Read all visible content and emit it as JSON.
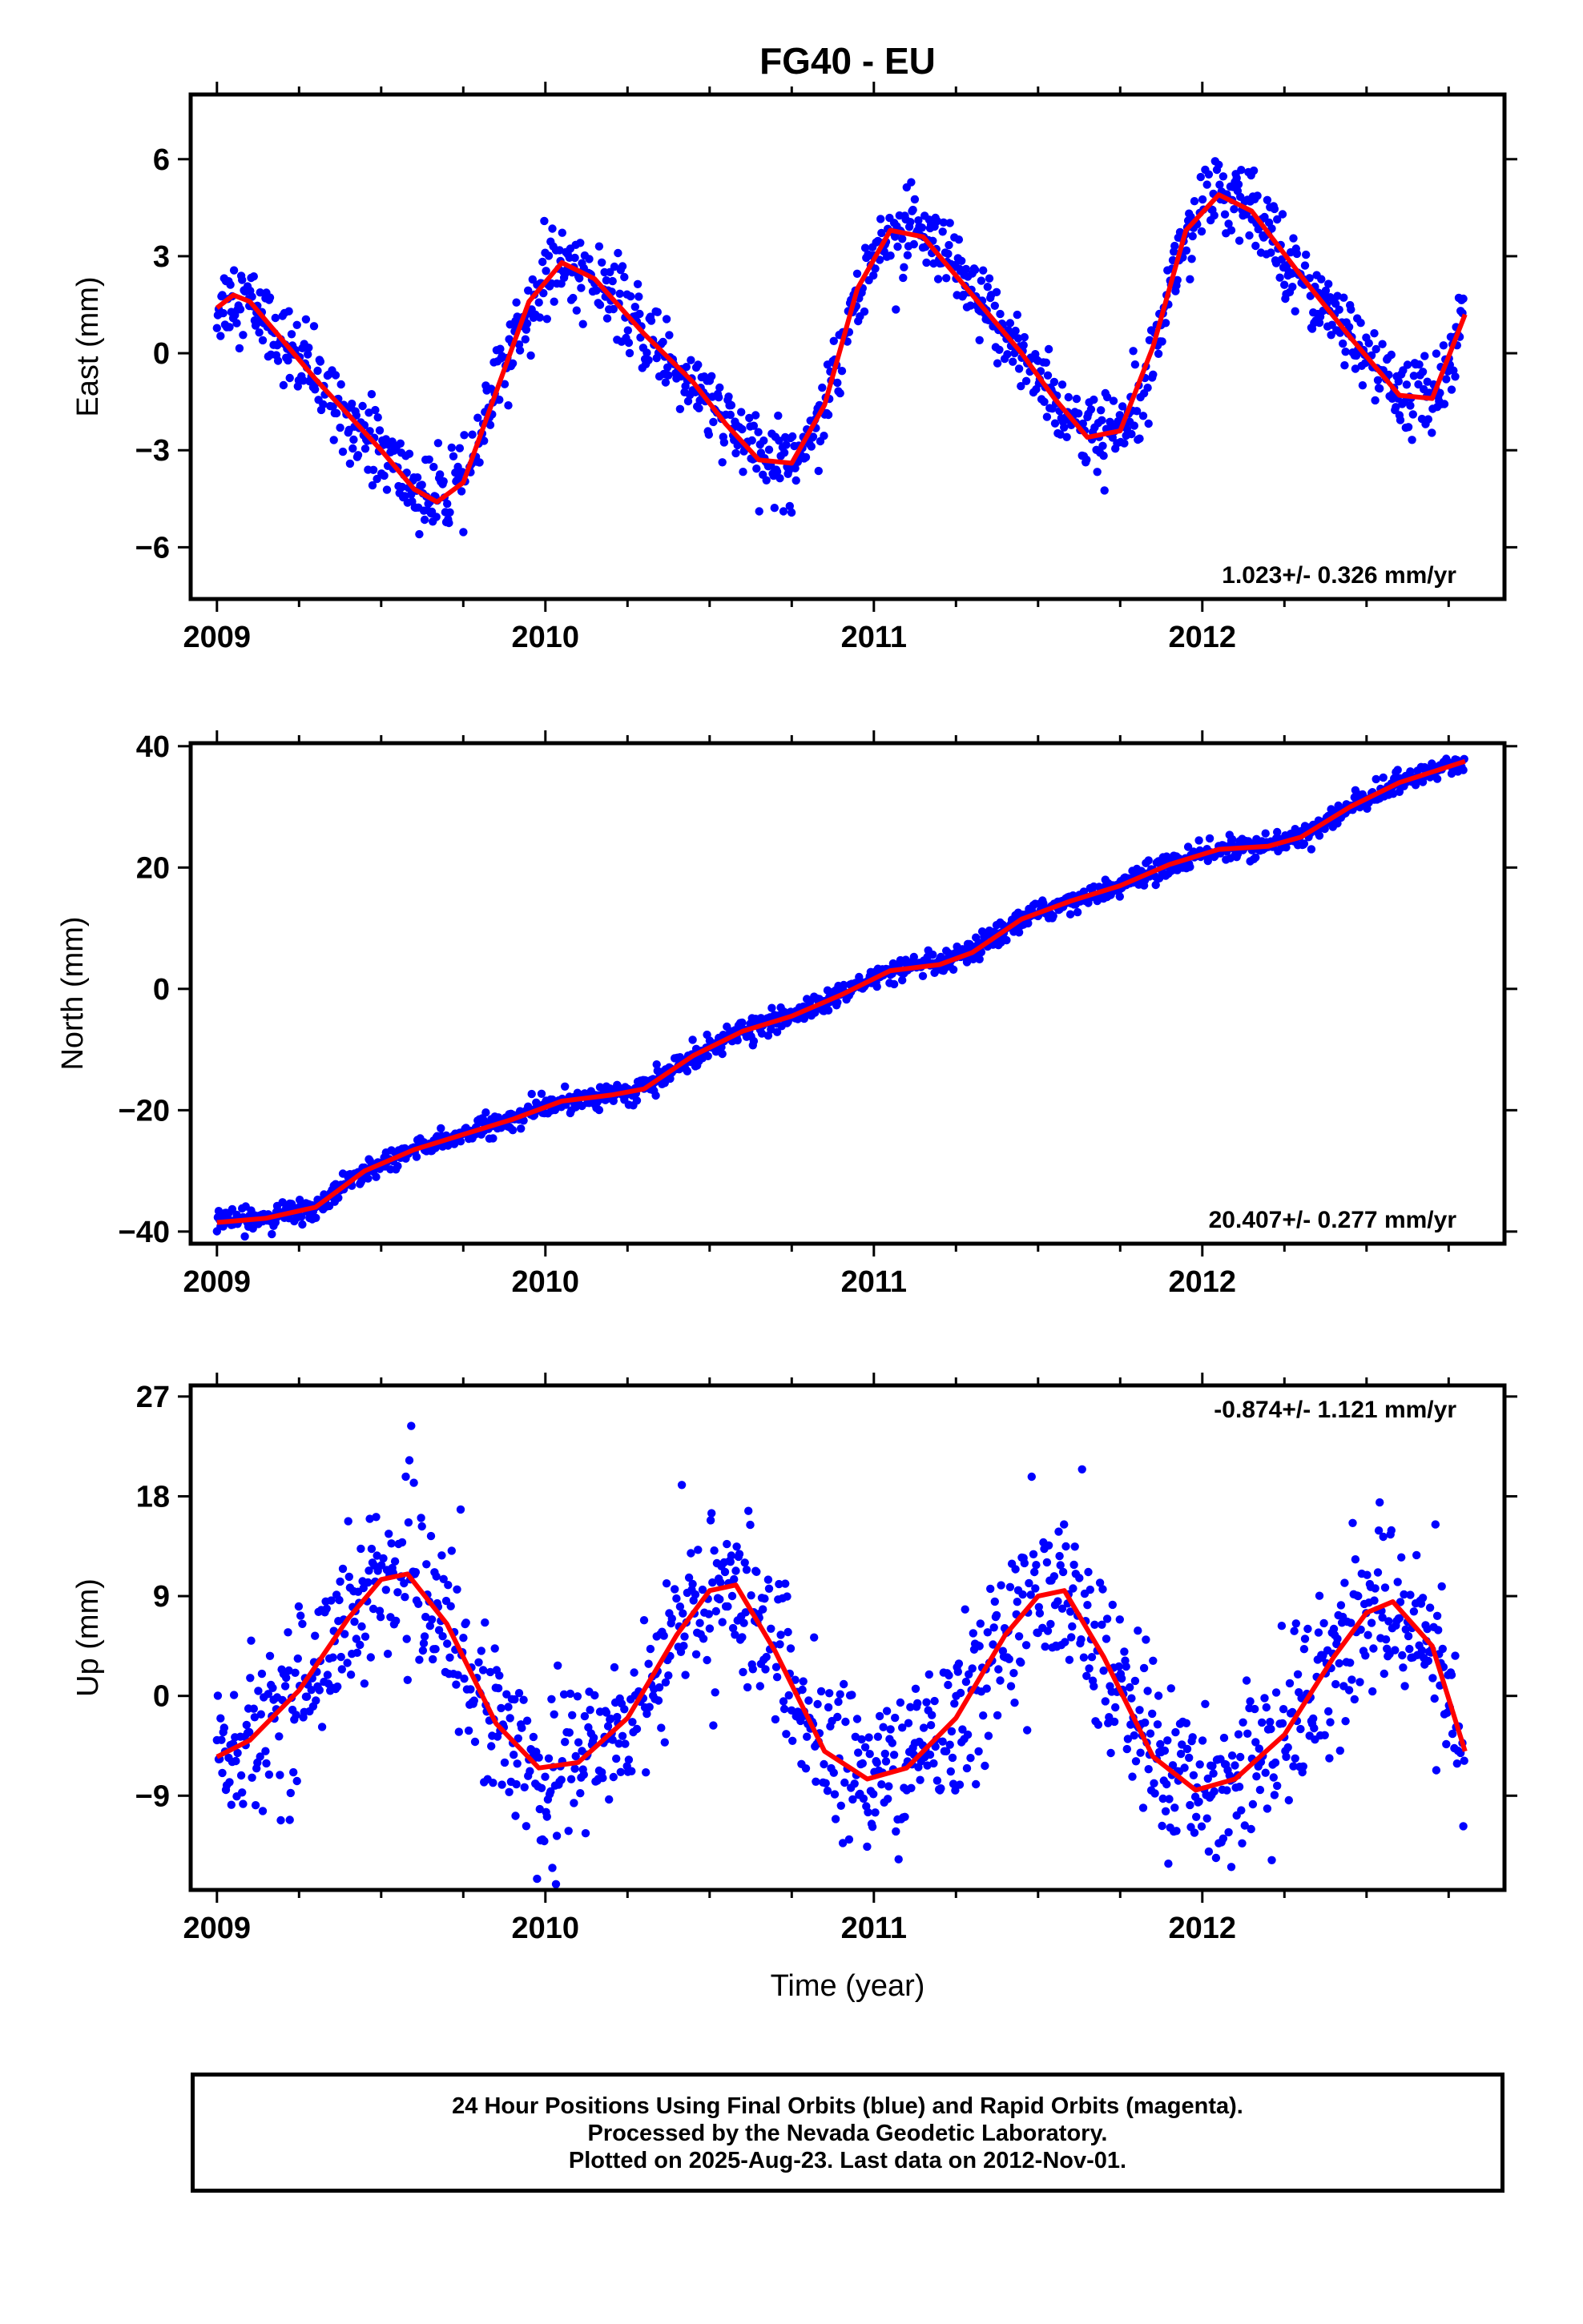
{
  "title": "FG40 - EU",
  "xlabel": "Time (year)",
  "footer": {
    "line1": "24 Hour Positions Using Final Orbits (blue) and Rapid Orbits (magenta).",
    "line2": "Processed by the Nevada Geodetic Laboratory.",
    "line3": "Plotted on 2025-Aug-23. Last data on 2012-Nov-01."
  },
  "colors": {
    "data_points": "#0000ff",
    "model_fit": "#ff0000",
    "frame": "#000000"
  },
  "chart_data": [
    {
      "type": "scatter",
      "ylabel": "East (mm)",
      "rate_label": "1.023+/- 0.326 mm/yr",
      "rate_position": "bottom-right",
      "xlim": [
        2008.92,
        2012.92
      ],
      "ylim": [
        -7.6,
        8
      ],
      "x_ticks": [
        2009,
        2010,
        2011,
        2012
      ],
      "x_tick_labels": [
        "2009",
        "2010",
        "2011",
        "2012"
      ],
      "y_ticks": [
        -6,
        -3,
        0,
        3,
        6
      ],
      "y_tick_labels": [
        "−6",
        "−3",
        "0",
        "3",
        "6"
      ],
      "fit_curve": {
        "x": [
          2009.0,
          2009.05,
          2009.1,
          2009.2,
          2009.3,
          2009.4,
          2009.5,
          2009.6,
          2009.67,
          2009.75,
          2009.85,
          2009.95,
          2010.05,
          2010.15,
          2010.3,
          2010.45,
          2010.55,
          2010.65,
          2010.75,
          2010.85,
          2010.95,
          2011.05,
          2011.15,
          2011.3,
          2011.45,
          2011.55,
          2011.65,
          2011.75,
          2011.85,
          2011.95,
          2012.05,
          2012.15,
          2012.3,
          2012.45,
          2012.6,
          2012.7,
          2012.8
        ],
        "y": [
          1.4,
          1.8,
          1.6,
          0.4,
          -0.8,
          -1.9,
          -3.0,
          -4.2,
          -4.6,
          -4.0,
          -1.2,
          1.6,
          2.8,
          2.3,
          0.6,
          -0.9,
          -2.2,
          -3.3,
          -3.4,
          -1.6,
          2.0,
          3.8,
          3.6,
          1.8,
          0.0,
          -1.4,
          -2.6,
          -2.4,
          0.2,
          3.8,
          4.9,
          4.4,
          2.4,
          0.5,
          -1.3,
          -1.4,
          1.2
        ]
      }
    },
    {
      "type": "scatter",
      "ylabel": "North (mm)",
      "rate_label": "20.407+/- 0.277 mm/yr",
      "rate_position": "bottom-right",
      "xlim": [
        2008.92,
        2012.92
      ],
      "ylim": [
        -42,
        40.5
      ],
      "x_ticks": [
        2009,
        2010,
        2011,
        2012
      ],
      "x_tick_labels": [
        "2009",
        "2010",
        "2011",
        "2012"
      ],
      "y_ticks": [
        -40,
        -20,
        0,
        20,
        40
      ],
      "y_tick_labels": [
        "−40",
        "−20",
        "0",
        "20",
        "40"
      ],
      "fit_curve": {
        "x": [
          2009.0,
          2009.15,
          2009.3,
          2009.45,
          2009.6,
          2009.75,
          2009.9,
          2010.05,
          2010.2,
          2010.3,
          2010.45,
          2010.6,
          2010.75,
          2010.9,
          2011.05,
          2011.2,
          2011.3,
          2011.45,
          2011.6,
          2011.75,
          2011.9,
          2012.05,
          2012.2,
          2012.3,
          2012.45,
          2012.6,
          2012.8
        ],
        "y": [
          -38.5,
          -37.8,
          -36.0,
          -30.0,
          -26.5,
          -24.0,
          -21.5,
          -18.5,
          -17.5,
          -16.5,
          -11.0,
          -7.0,
          -4.5,
          -1.0,
          3.0,
          4.0,
          6.0,
          11.5,
          14.5,
          17.0,
          20.5,
          23.0,
          23.5,
          25.0,
          30.0,
          34.0,
          37.5
        ]
      }
    },
    {
      "type": "scatter",
      "ylabel": "Up (mm)",
      "rate_label": "-0.874+/- 1.121 mm/yr",
      "rate_position": "top-right",
      "xlim": [
        2008.92,
        2012.92
      ],
      "ylim": [
        -17.5,
        28
      ],
      "x_ticks": [
        2009,
        2010,
        2011,
        2012
      ],
      "x_tick_labels": [
        "2009",
        "2010",
        "2011",
        "2012"
      ],
      "y_ticks": [
        -9,
        0,
        9,
        18,
        27
      ],
      "y_tick_labels": [
        "−9",
        "0",
        "9",
        "18",
        "27"
      ],
      "fit_curve": {
        "x": [
          2009.0,
          2009.1,
          2009.25,
          2009.4,
          2009.5,
          2009.58,
          2009.7,
          2009.85,
          2009.98,
          2010.1,
          2010.25,
          2010.4,
          2010.5,
          2010.58,
          2010.7,
          2010.85,
          2010.98,
          2011.1,
          2011.25,
          2011.4,
          2011.5,
          2011.58,
          2011.7,
          2011.85,
          2011.98,
          2012.1,
          2012.25,
          2012.4,
          2012.5,
          2012.58,
          2012.7,
          2012.8
        ],
        "y": [
          -5.5,
          -4.0,
          0.5,
          7.0,
          10.5,
          11.0,
          6.5,
          -2.5,
          -6.5,
          -6.0,
          -2.0,
          5.5,
          9.5,
          10.0,
          4.0,
          -5.0,
          -7.5,
          -6.5,
          -2.0,
          5.5,
          9.0,
          9.5,
          3.5,
          -5.5,
          -8.5,
          -7.5,
          -3.5,
          3.5,
          7.5,
          8.5,
          4.5,
          -5.0
        ]
      }
    }
  ]
}
